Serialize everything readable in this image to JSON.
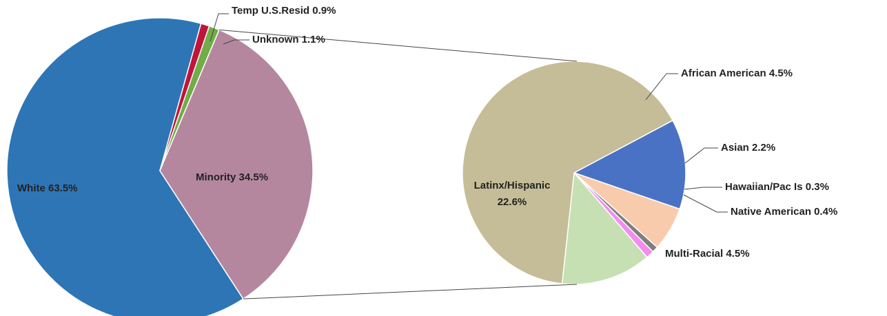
{
  "chart_data": [
    {
      "type": "pie",
      "colors": {
        "White": "#2e75b6",
        "Minority": "#b5879f",
        "Unknown": "#70ad47",
        "Temp U.S.Resid": "#c0143c"
      },
      "slices": [
        {
          "label": "White",
          "value": 63.5,
          "display": "White  63.5%"
        },
        {
          "label": "Temp U.S.Resid",
          "value": 0.9,
          "display": "Temp U.S.Resid 0.9%"
        },
        {
          "label": "Unknown",
          "value": 1.1,
          "display": "Unknown 1.1%"
        },
        {
          "label": "Minority",
          "value": 34.5,
          "display": "Minority 34.5%"
        }
      ]
    },
    {
      "type": "pie",
      "colors": {
        "Latinx/Hispanic": "#c4bd97",
        "African American": "#4a72c4",
        "Asian": "#f8cbad",
        "Hawaiian/Pac Is": "#7f7f7f",
        "Native American": "#f48cf0",
        "Multi-Racial": "#c6e0b4"
      },
      "slices": [
        {
          "label": "African American",
          "value": 4.5,
          "display": "African American 4.5%"
        },
        {
          "label": "Asian",
          "value": 2.2,
          "display": "Asian 2.2%"
        },
        {
          "label": "Hawaiian/Pac Is",
          "value": 0.3,
          "display": "Hawaiian/Pac Is 0.3%"
        },
        {
          "label": "Native American",
          "value": 0.4,
          "display": "Native American 0.4%"
        },
        {
          "label": "Multi-Racial",
          "value": 4.5,
          "display": "Multi-Racial 4.5%"
        },
        {
          "label": "Latinx/Hispanic",
          "value": 22.6,
          "display": [
            "Latinx/Hispanic",
            "22.6%"
          ]
        }
      ]
    }
  ]
}
